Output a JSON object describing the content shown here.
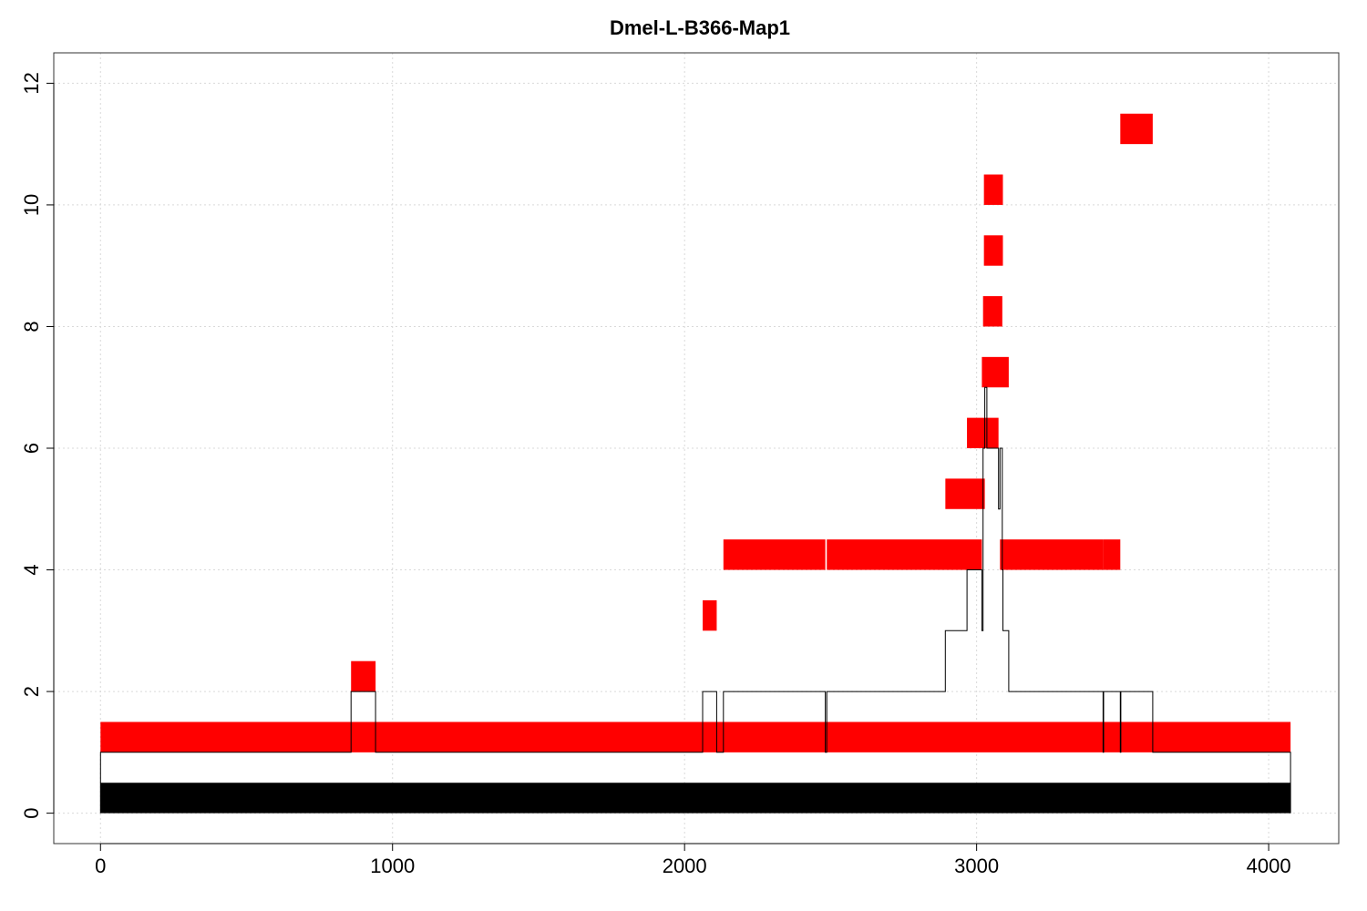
{
  "chart_data": {
    "type": "bar",
    "title": "Dmel-L-B366-Map1",
    "xlabel": "",
    "ylabel": "",
    "xlim": [
      -160,
      4240
    ],
    "ylim": [
      -0.5,
      12.5
    ],
    "x_ticks": [
      0,
      1000,
      2000,
      3000,
      4000
    ],
    "y_ticks": [
      0,
      2,
      4,
      6,
      8,
      10,
      12
    ],
    "grid": true,
    "colors": {
      "reference": "#000000",
      "read": "#ff0000",
      "coverage": "#000000"
    },
    "reference_bar": {
      "x0": 0,
      "x1": 4075,
      "y0": 0,
      "y1": 0.5
    },
    "read_segments": [
      {
        "x0": 0,
        "x1": 4075,
        "y0": 1,
        "y1": 1.5
      },
      {
        "x0": 858,
        "x1": 942,
        "y0": 2,
        "y1": 2.5
      },
      {
        "x0": 2062,
        "x1": 2110,
        "y0": 3,
        "y1": 3.5
      },
      {
        "x0": 2133,
        "x1": 2482,
        "y0": 4,
        "y1": 4.5
      },
      {
        "x0": 2487,
        "x1": 3018,
        "y0": 4,
        "y1": 4.5
      },
      {
        "x0": 3080,
        "x1": 3433,
        "y0": 4,
        "y1": 4.5
      },
      {
        "x0": 3433,
        "x1": 3492,
        "y0": 4,
        "y1": 4.5
      },
      {
        "x0": 2893,
        "x1": 3028,
        "y0": 5,
        "y1": 5.5
      },
      {
        "x0": 2967,
        "x1": 3075,
        "y0": 6,
        "y1": 6.5
      },
      {
        "x0": 3018,
        "x1": 3110,
        "y0": 7,
        "y1": 7.5
      },
      {
        "x0": 3022,
        "x1": 3088,
        "y0": 8,
        "y1": 8.5
      },
      {
        "x0": 3025,
        "x1": 3090,
        "y0": 9,
        "y1": 9.5
      },
      {
        "x0": 3025,
        "x1": 3090,
        "y0": 10,
        "y1": 10.5
      },
      {
        "x0": 3492,
        "x1": 3603,
        "y0": 11,
        "y1": 11.5
      }
    ],
    "coverage_line": [
      [
        0,
        0
      ],
      [
        0,
        1
      ],
      [
        858,
        1
      ],
      [
        858,
        2
      ],
      [
        942,
        2
      ],
      [
        942,
        1
      ],
      [
        2062,
        1
      ],
      [
        2062,
        2
      ],
      [
        2110,
        2
      ],
      [
        2110,
        1
      ],
      [
        2133,
        1
      ],
      [
        2133,
        2
      ],
      [
        2482,
        2
      ],
      [
        2482,
        1
      ],
      [
        2487,
        1
      ],
      [
        2487,
        2
      ],
      [
        2893,
        2
      ],
      [
        2893,
        3
      ],
      [
        2967,
        3
      ],
      [
        2967,
        4
      ],
      [
        3018,
        4
      ],
      [
        3018,
        3
      ],
      [
        3022,
        3
      ],
      [
        3022,
        6
      ],
      [
        3028,
        6
      ],
      [
        3028,
        7
      ],
      [
        3035,
        7
      ],
      [
        3035,
        6
      ],
      [
        3075,
        6
      ],
      [
        3075,
        5
      ],
      [
        3080,
        5
      ],
      [
        3080,
        6
      ],
      [
        3088,
        6
      ],
      [
        3088,
        4
      ],
      [
        3090,
        4
      ],
      [
        3090,
        3
      ],
      [
        3110,
        3
      ],
      [
        3110,
        2
      ],
      [
        3433,
        2
      ],
      [
        3433,
        1
      ],
      [
        3435,
        1
      ],
      [
        3435,
        2
      ],
      [
        3492,
        2
      ],
      [
        3492,
        1
      ],
      [
        3494,
        1
      ],
      [
        3494,
        2
      ],
      [
        3603,
        2
      ],
      [
        3603,
        1
      ],
      [
        4075,
        1
      ],
      [
        4075,
        0
      ]
    ]
  }
}
